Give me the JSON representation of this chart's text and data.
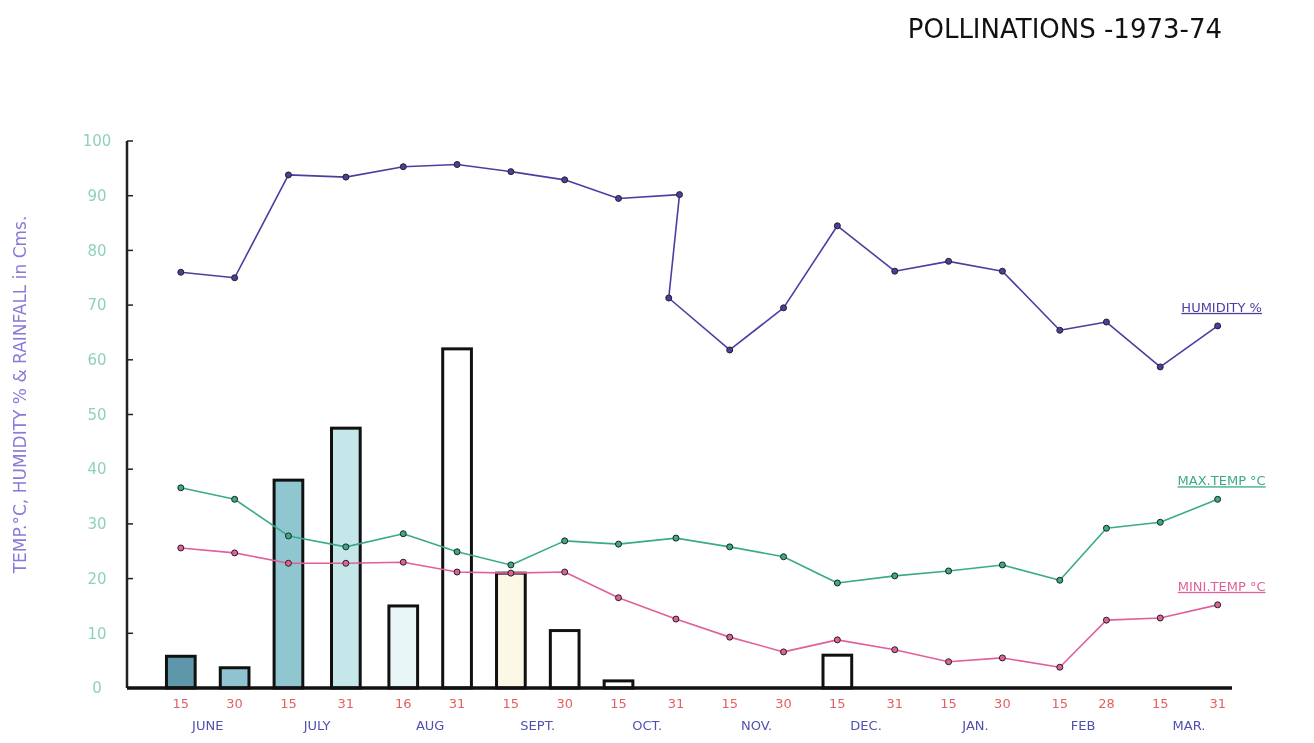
{
  "chart_data": {
    "type": "line",
    "title": "POLLINATIONS -1973-74",
    "ylabel": "TEMP.°C, HUMIDITY % & RAINFALL in Cms.",
    "x": [
      "1973-06-15",
      "1973-06-30",
      "1973-07-15",
      "1973-07-31",
      "1973-08-16",
      "1973-08-31",
      "1973-09-15",
      "1973-09-30",
      "1973-10-15",
      "1973-10-31",
      "1973-11-15",
      "1973-11-30",
      "1973-12-15",
      "1973-12-31",
      "1974-01-15",
      "1974-01-30",
      "1974-02-15",
      "1974-02-28",
      "1974-03-15",
      "1974-03-31"
    ],
    "xlim": [
      "1973-05-31",
      "1974-04-04"
    ],
    "xticks": [
      {
        "value": "1973-06-15",
        "label": "15"
      },
      {
        "value": "1973-06-30",
        "label": "30"
      },
      {
        "value": "1973-07-15",
        "label": "15"
      },
      {
        "value": "1973-07-31",
        "label": "31"
      },
      {
        "value": "1973-08-16",
        "label": "16"
      },
      {
        "value": "1973-08-31",
        "label": "31"
      },
      {
        "value": "1973-09-15",
        "label": "15"
      },
      {
        "value": "1973-09-30",
        "label": "30"
      },
      {
        "value": "1973-10-15",
        "label": "15"
      },
      {
        "value": "1973-10-31",
        "label": "31"
      },
      {
        "value": "1973-11-15",
        "label": "15"
      },
      {
        "value": "1973-11-30",
        "label": "30"
      },
      {
        "value": "1973-12-15",
        "label": "15"
      },
      {
        "value": "1973-12-31",
        "label": "31"
      },
      {
        "value": "1974-01-15",
        "label": "15"
      },
      {
        "value": "1974-01-30",
        "label": "30"
      },
      {
        "value": "1974-02-15",
        "label": "15"
      },
      {
        "value": "1974-02-28",
        "label": "28"
      },
      {
        "value": "1974-03-15",
        "label": "15"
      },
      {
        "value": "1974-03-31",
        "label": "31"
      }
    ],
    "ylim": [
      0,
      100
    ],
    "yticks": [
      0,
      10,
      20,
      30,
      40,
      50,
      60,
      70,
      80,
      90,
      100
    ],
    "marker": "circle",
    "annotations": [
      "JUNE",
      "JULY",
      "AUG",
      "SEPT.",
      "OCT.",
      "NOV.",
      "DEC.",
      "JAN.",
      "FEB",
      "MAR."
    ],
    "series": [
      {
        "type": "bar",
        "colors": [
          "#5e97aa",
          "#8ec3cf",
          "#8fc6d0",
          "#c6e7ea",
          "#e8f6f7",
          "#ffffff",
          "#fbf9e6",
          "#ffffff",
          "#ffffff",
          null,
          null,
          null,
          "#ffffff",
          null,
          null,
          null,
          null,
          null,
          null,
          null
        ],
        "values": [
          5.8,
          3.7,
          38,
          47.5,
          15,
          62,
          21,
          10.5,
          1.3,
          null,
          null,
          null,
          6,
          null,
          null,
          null,
          null,
          null,
          null,
          null
        ]
      },
      {
        "name": "HUMIDITY %",
        "color": "#4a3fa0",
        "x": [
          "1973-06-15",
          "1973-06-30",
          "1973-07-15",
          "1973-07-31",
          "1973-08-16",
          "1973-08-31",
          "1973-09-15",
          "1973-09-30",
          "1973-10-15",
          "1973-11-01",
          "1973-10-29",
          "1973-11-15",
          "1973-11-30",
          "1973-12-15",
          "1973-12-31",
          "1974-01-15",
          "1974-01-30",
          "1974-02-15",
          "1974-02-28",
          "1974-03-15",
          "1974-03-31"
        ],
        "values": [
          76,
          75,
          93.8,
          93.4,
          95.3,
          95.7,
          94.4,
          92.9,
          89.5,
          90.2,
          71.3,
          61.8,
          69.5,
          84.5,
          76.2,
          78,
          76.2,
          65.4,
          66.9,
          58.7,
          66.2
        ]
      },
      {
        "name": "MAX.TEMP °C",
        "color": "#3aaa8a",
        "values": [
          36.6,
          34.5,
          27.8,
          25.8,
          28.2,
          24.9,
          22.5,
          26.9,
          26.3,
          27.4,
          25.8,
          24,
          19.2,
          20.5,
          21.4,
          22.5,
          19.7,
          29.2,
          30.3,
          34.5
        ]
      },
      {
        "name": "MINI.TEMP °C",
        "color": "#e0609a",
        "values": [
          25.6,
          24.7,
          22.8,
          22.8,
          23,
          21.2,
          21,
          21.2,
          16.5,
          12.6,
          9.3,
          6.6,
          8.8,
          7,
          4.8,
          5.5,
          3.8,
          12.4,
          12.8,
          15.2
        ]
      }
    ]
  }
}
